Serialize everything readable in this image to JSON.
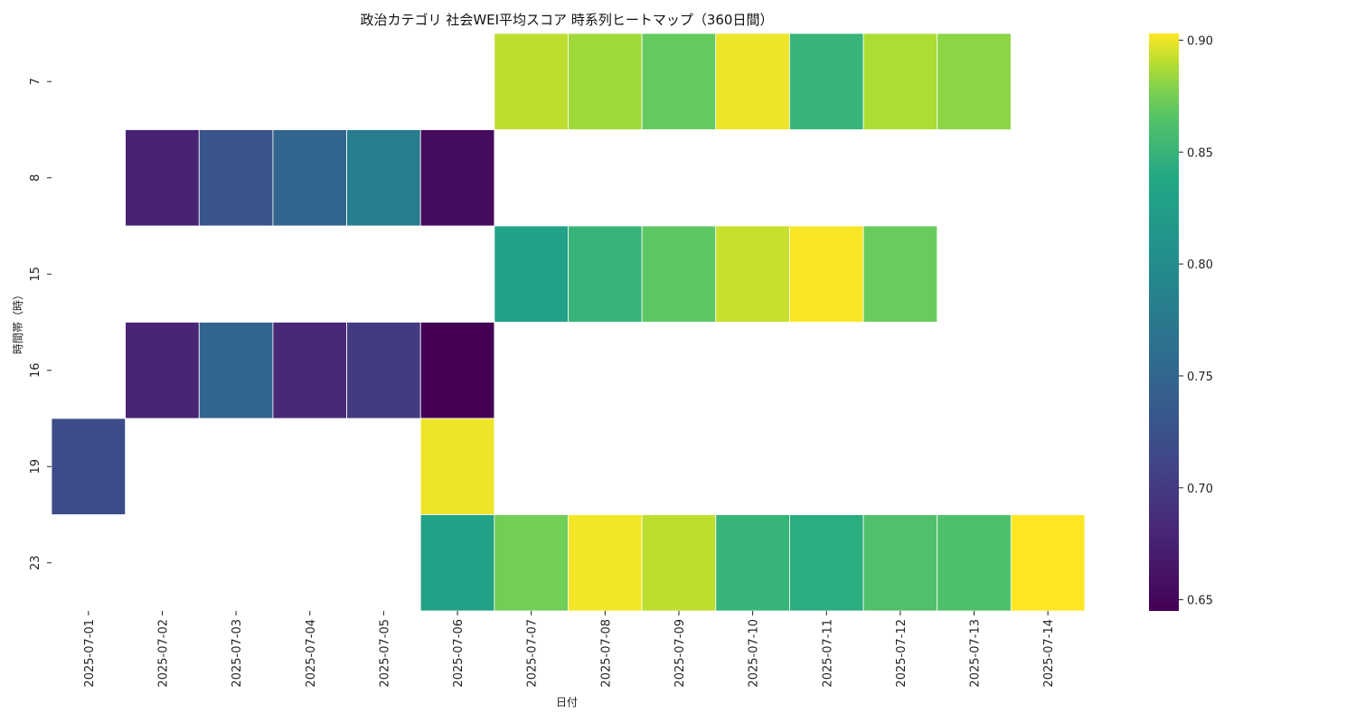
{
  "chart_data": {
    "type": "heatmap",
    "title": "政治カテゴリ 社会WEI平均スコア 時系列ヒートマップ（360日間）",
    "xlabel": "日付",
    "ylabel": "時間帯（時）",
    "x_categories": [
      "2025-07-01",
      "2025-07-02",
      "2025-07-03",
      "2025-07-04",
      "2025-07-05",
      "2025-07-06",
      "2025-07-07",
      "2025-07-08",
      "2025-07-09",
      "2025-07-10",
      "2025-07-11",
      "2025-07-12",
      "2025-07-13",
      "2025-07-14"
    ],
    "y_categories": [
      "7",
      "8",
      "15",
      "16",
      "19",
      "23"
    ],
    "values": [
      [
        null,
        null,
        null,
        null,
        null,
        null,
        0.891,
        0.885,
        0.872,
        0.9,
        0.85,
        0.888,
        0.881,
        null
      ],
      [
        null,
        0.675,
        0.73,
        0.75,
        0.78,
        0.655,
        null,
        null,
        null,
        null,
        null,
        null,
        null,
        null
      ],
      [
        null,
        null,
        null,
        null,
        null,
        null,
        0.83,
        0.85,
        0.87,
        0.893,
        0.902,
        0.873,
        null,
        null
      ],
      [
        null,
        0.678,
        0.75,
        0.682,
        0.7,
        0.645,
        null,
        null,
        null,
        null,
        null,
        null,
        null,
        null
      ],
      [
        0.718,
        null,
        null,
        null,
        null,
        0.9,
        null,
        null,
        null,
        null,
        null,
        null,
        null,
        null
      ],
      [
        null,
        null,
        null,
        null,
        null,
        0.83,
        0.875,
        0.901,
        0.891,
        0.85,
        0.843,
        0.863,
        0.862,
        0.903
      ]
    ],
    "colorbar": {
      "colormap": "viridis",
      "min": 0.645,
      "max": 0.903,
      "ticks": [
        "0.65",
        "0.70",
        "0.75",
        "0.80",
        "0.85",
        "0.90"
      ]
    },
    "grid": false
  }
}
